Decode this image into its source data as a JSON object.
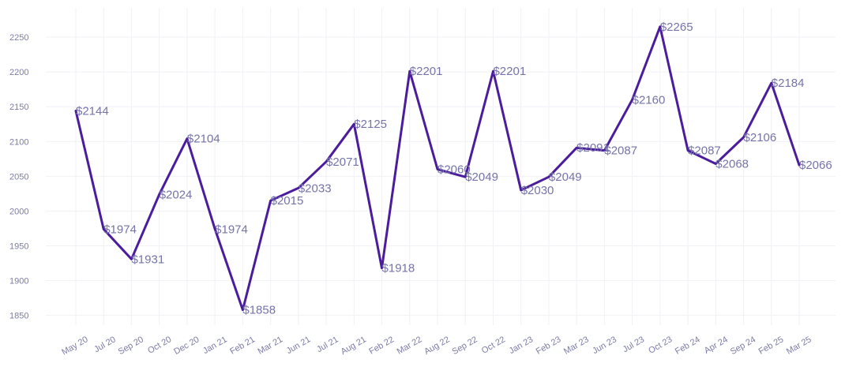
{
  "chart_data": {
    "type": "line",
    "categories": [
      "May 20",
      "Jul 20",
      "Sep 20",
      "Oct 20",
      "Dec 20",
      "Jan 21",
      "Feb 21",
      "Mar 21",
      "Jun 21",
      "Jul 21",
      "Aug 21",
      "Feb 22",
      "Mar 22",
      "Aug 22",
      "Sep 22",
      "Oct 22",
      "Jan 23",
      "Feb 23",
      "Mar 23",
      "Jun 23",
      "Jul 23",
      "Oct 23",
      "Feb 24",
      "Apr 24",
      "Sep 24",
      "Feb 25",
      "Mar 25"
    ],
    "values": [
      2144,
      1974,
      1931,
      2024,
      2104,
      1974,
      1858,
      2015,
      2033,
      2071,
      2125,
      1918,
      2201,
      2060,
      2049,
      2201,
      2030,
      2049,
      2091,
      2087,
      2160,
      2265,
      2087,
      2068,
      2106,
      2184,
      2066
    ],
    "labels": [
      "$2144",
      "$1974",
      "$1931",
      "$2024",
      "$2104",
      "$1974",
      "$1858",
      "$2015",
      "$2033",
      "$2071",
      "$2125",
      "$1918",
      "$2201",
      "$2060",
      "$2049",
      "$2201",
      "$2030",
      "$2049",
      "$2091",
      "$2087",
      "$2160",
      "$2265",
      "$2087",
      "$2068",
      "$2106",
      "$2184",
      "$2066"
    ],
    "yticks": [
      1850,
      1900,
      1950,
      2000,
      2050,
      2100,
      2150,
      2200,
      2250
    ],
    "ylim": [
      1836,
      2292
    ],
    "grid": true,
    "line_color": "#4b1c9c",
    "label_color": "#7474a8",
    "tick_color": "#7b7ba8",
    "grid_color": "#f1f1f6",
    "title": "",
    "xlabel": "",
    "ylabel": ""
  }
}
